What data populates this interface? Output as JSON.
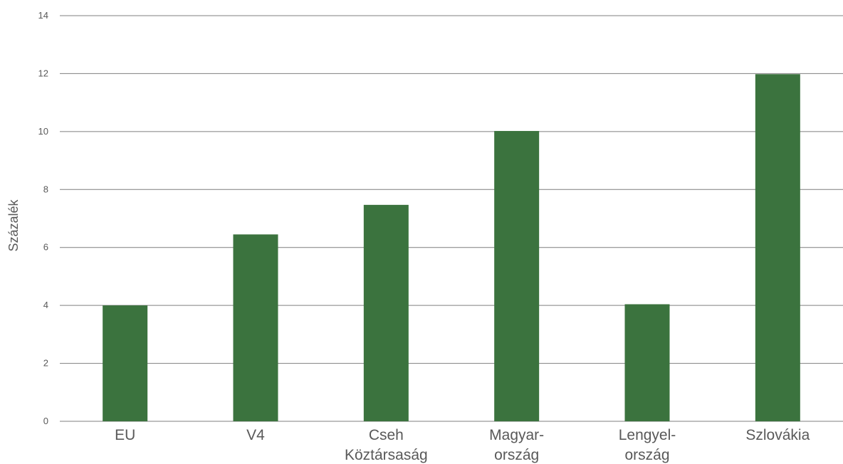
{
  "chart_data": {
    "type": "bar",
    "categories": [
      [
        "EU"
      ],
      [
        "V4"
      ],
      [
        "Cseh",
        "Köztársaság"
      ],
      [
        "Magyar-",
        "ország"
      ],
      [
        "Lengyel-",
        "ország"
      ],
      [
        "Szlovákia"
      ]
    ],
    "values": [
      4.0,
      6.45,
      7.47,
      10.02,
      4.04,
      11.98
    ],
    "xlabel": "",
    "ylabel": "Százalék",
    "ylim": [
      0,
      14
    ],
    "yticks": [
      0,
      2,
      4,
      6,
      8,
      10,
      12,
      14
    ],
    "grid": true,
    "bar_color": "#3b733e",
    "grid_color": "#7f7f7f"
  }
}
